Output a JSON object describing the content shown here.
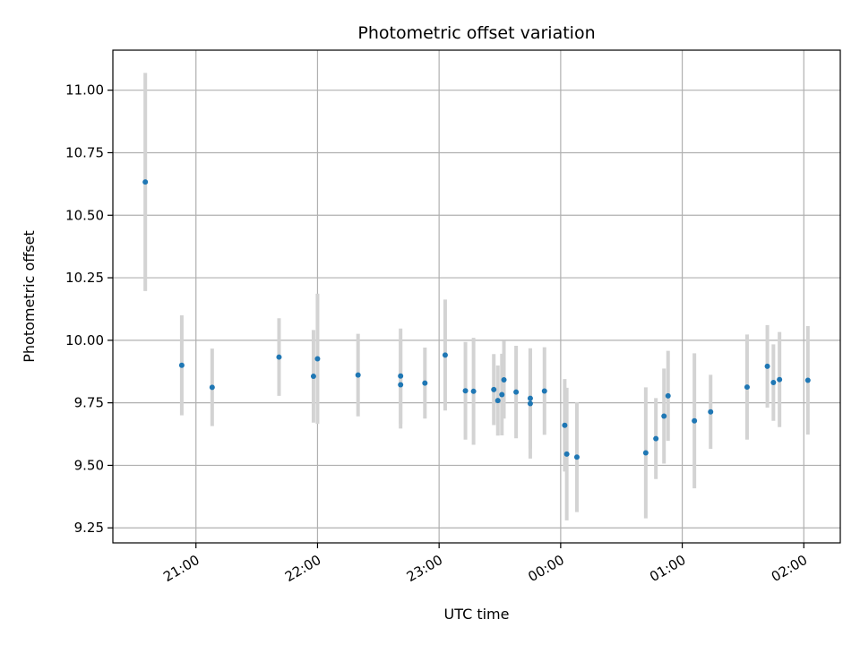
{
  "chart_data": {
    "type": "scatter",
    "title": "Photometric offset variation",
    "xlabel": "UTC time",
    "ylabel": "Photometric offset",
    "x_tick_labels": [
      "21:00",
      "22:00",
      "23:00",
      "00:00",
      "01:00",
      "02:00"
    ],
    "x_tick_values": [
      "21:00",
      "22:00",
      "23:00",
      "24:00",
      "25:00",
      "26:00"
    ],
    "xlim": [
      "20:19",
      "26:18"
    ],
    "y_ticks": [
      9.25,
      9.5,
      9.75,
      10.0,
      10.25,
      10.5,
      10.75,
      11.0
    ],
    "y_tick_labels": [
      "9.25",
      "9.50",
      "9.75",
      "10.00",
      "10.25",
      "10.50",
      "10.75",
      "11.00"
    ],
    "ylim": [
      9.19,
      11.16
    ],
    "grid": true,
    "colors": {
      "point": "#1f77b4",
      "errorbar": "#d3d3d3",
      "grid": "#b0b0b0"
    },
    "points": [
      {
        "t": "20:35",
        "y": 10.633,
        "err": 0.436
      },
      {
        "t": "20:53",
        "y": 9.9,
        "err": 0.2
      },
      {
        "t": "21:08",
        "y": 9.812,
        "err": 0.155
      },
      {
        "t": "21:41",
        "y": 9.933,
        "err": 0.155
      },
      {
        "t": "21:58",
        "y": 9.856,
        "err": 0.185
      },
      {
        "t": "22:00",
        "y": 9.926,
        "err": 0.26
      },
      {
        "t": "22:20",
        "y": 9.861,
        "err": 0.165
      },
      {
        "t": "22:41",
        "y": 9.822,
        "err": 0.175
      },
      {
        "t": "22:41",
        "y": 9.857,
        "err": 0.19
      },
      {
        "t": "22:53",
        "y": 9.829,
        "err": 0.142
      },
      {
        "t": "23:03",
        "y": 9.941,
        "err": 0.222
      },
      {
        "t": "23:13",
        "y": 9.798,
        "err": 0.195
      },
      {
        "t": "23:17",
        "y": 9.796,
        "err": 0.214
      },
      {
        "t": "23:27",
        "y": 9.803,
        "err": 0.142
      },
      {
        "t": "23:29",
        "y": 9.759,
        "err": 0.14
      },
      {
        "t": "23:31",
        "y": 9.783,
        "err": 0.163
      },
      {
        "t": "23:32",
        "y": 9.842,
        "err": 0.155
      },
      {
        "t": "23:38",
        "y": 9.793,
        "err": 0.185
      },
      {
        "t": "23:45",
        "y": 9.768,
        "err": 0.2
      },
      {
        "t": "23:45",
        "y": 9.747,
        "err": 0.22
      },
      {
        "t": "23:52",
        "y": 9.797,
        "err": 0.175
      },
      {
        "t": "24:02",
        "y": 9.66,
        "err": 0.185
      },
      {
        "t": "24:03",
        "y": 9.545,
        "err": 0.265
      },
      {
        "t": "24:08",
        "y": 9.533,
        "err": 0.22
      },
      {
        "t": "24:42",
        "y": 9.55,
        "err": 0.262
      },
      {
        "t": "24:47",
        "y": 9.607,
        "err": 0.162
      },
      {
        "t": "24:51",
        "y": 9.697,
        "err": 0.19
      },
      {
        "t": "24:53",
        "y": 9.778,
        "err": 0.18
      },
      {
        "t": "25:06",
        "y": 9.678,
        "err": 0.27
      },
      {
        "t": "25:14",
        "y": 9.714,
        "err": 0.148
      },
      {
        "t": "25:32",
        "y": 9.813,
        "err": 0.21
      },
      {
        "t": "25:42",
        "y": 9.896,
        "err": 0.165
      },
      {
        "t": "25:45",
        "y": 9.831,
        "err": 0.153
      },
      {
        "t": "25:48",
        "y": 9.843,
        "err": 0.19
      },
      {
        "t": "26:02",
        "y": 9.84,
        "err": 0.217
      }
    ]
  }
}
